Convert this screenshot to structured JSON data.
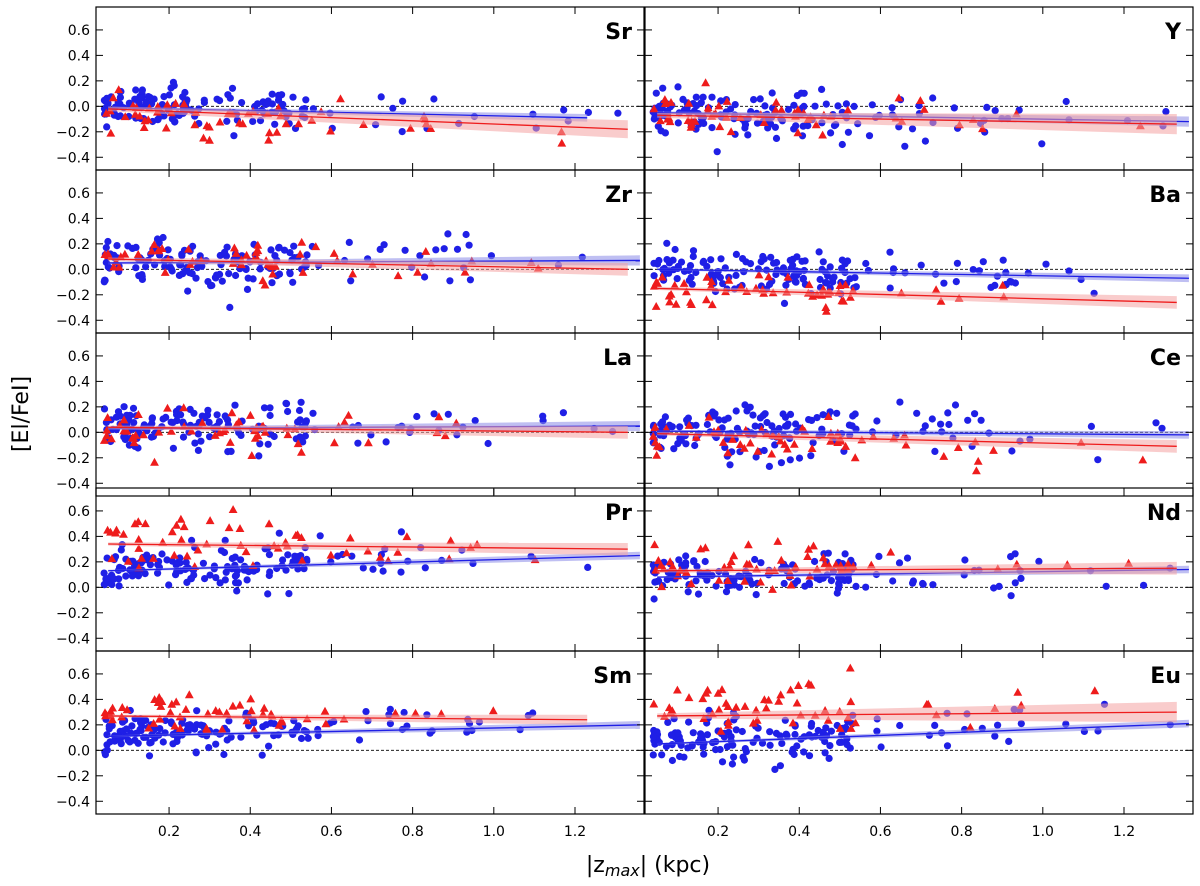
{
  "chart_data": {
    "type": "scatter",
    "xlabel_prefix": "|z",
    "xlabel_sub": "max",
    "xlabel_suffix": "| (kpc)",
    "ylabel": "[El/FeI]",
    "xlim": [
      0.02,
      1.37
    ],
    "ylim": [
      -0.5,
      0.78
    ],
    "xticks": [
      0.2,
      0.4,
      0.6,
      0.8,
      1.0,
      1.2
    ],
    "xtick_labels": [
      "0.2",
      "0.4",
      "0.6",
      "0.8",
      "1.0",
      "1.2"
    ],
    "yticks": [
      -0.4,
      -0.2,
      0.0,
      0.2,
      0.4,
      0.6
    ],
    "ytick_labels": [
      "−0.4",
      "−0.2",
      "0.0",
      "0.2",
      "0.4",
      "0.6"
    ],
    "reference_line_y": 0.0,
    "colors": {
      "blue": "#1f1fe6",
      "red": "#ee1c1c",
      "blue_band": "#8a8ae8",
      "red_band": "#f4a3a3"
    },
    "series_legend": [
      {
        "name": "blue",
        "marker": "circle"
      },
      {
        "name": "red",
        "marker": "triangle"
      }
    ],
    "panels": [
      {
        "element": "Sr",
        "blue": {
          "center": 0.0,
          "spread": 0.1,
          "fit": [
            -0.01,
            -0.09
          ],
          "fit_xmax": 1.23,
          "band": 0.03
        },
        "red": {
          "center": -0.05,
          "spread": 0.1,
          "fit": [
            -0.02,
            -0.18
          ],
          "fit_xmax": 1.33,
          "band": 0.07
        }
      },
      {
        "element": "Y",
        "blue": {
          "center": -0.05,
          "spread": 0.11,
          "fit": [
            -0.05,
            -0.12
          ],
          "fit_xmax": 1.36,
          "band": 0.04
        },
        "red": {
          "center": -0.07,
          "spread": 0.1,
          "fit": [
            -0.07,
            -0.14
          ],
          "fit_xmax": 1.33,
          "band": 0.08
        }
      },
      {
        "element": "Zr",
        "blue": {
          "center": 0.05,
          "spread": 0.11,
          "fit": [
            0.05,
            0.07
          ],
          "fit_xmax": 1.36,
          "band": 0.04
        },
        "red": {
          "center": 0.08,
          "spread": 0.1,
          "fit": [
            0.08,
            0.0
          ],
          "fit_xmax": 1.33,
          "band": 0.05
        }
      },
      {
        "element": "Ba",
        "blue": {
          "center": 0.0,
          "spread": 0.11,
          "fit": [
            0.0,
            -0.07
          ],
          "fit_xmax": 1.36,
          "band": 0.03
        },
        "red": {
          "center": -0.16,
          "spread": 0.09,
          "fit": [
            -0.15,
            -0.26
          ],
          "fit_xmax": 1.33,
          "band": 0.05
        }
      },
      {
        "element": "La",
        "blue": {
          "center": 0.04,
          "spread": 0.11,
          "fit": [
            0.03,
            0.05
          ],
          "fit_xmax": 1.36,
          "band": 0.04
        },
        "red": {
          "center": 0.02,
          "spread": 0.1,
          "fit": [
            0.04,
            0.0
          ],
          "fit_xmax": 1.33,
          "band": 0.05
        }
      },
      {
        "element": "Ce",
        "blue": {
          "center": 0.02,
          "spread": 0.12,
          "fit": [
            0.01,
            -0.02
          ],
          "fit_xmax": 1.36,
          "band": 0.03
        },
        "red": {
          "center": -0.05,
          "spread": 0.1,
          "fit": [
            -0.01,
            -0.11
          ],
          "fit_xmax": 1.33,
          "band": 0.05
        }
      },
      {
        "element": "Pr",
        "blue": {
          "center": 0.13,
          "spread": 0.11,
          "fit": [
            0.13,
            0.25
          ],
          "fit_xmax": 1.36,
          "band": 0.03
        },
        "red": {
          "center": 0.37,
          "spread": 0.12,
          "fit": [
            0.34,
            0.3
          ],
          "fit_xmax": 1.33,
          "band": 0.05
        }
      },
      {
        "element": "Nd",
        "blue": {
          "center": 0.08,
          "spread": 0.1,
          "fit": [
            0.08,
            0.14
          ],
          "fit_xmax": 1.36,
          "band": 0.03
        },
        "red": {
          "center": 0.17,
          "spread": 0.11,
          "fit": [
            0.13,
            0.15
          ],
          "fit_xmax": 1.33,
          "band": 0.05
        }
      },
      {
        "element": "Sm",
        "blue": {
          "center": 0.14,
          "spread": 0.1,
          "fit": [
            0.11,
            0.2
          ],
          "fit_xmax": 1.36,
          "band": 0.03
        },
        "red": {
          "center": 0.29,
          "spread": 0.09,
          "fit": [
            0.27,
            0.24
          ],
          "fit_xmax": 1.23,
          "band": 0.04
        }
      },
      {
        "element": "Eu",
        "blue": {
          "center": 0.08,
          "spread": 0.11,
          "fit": [
            0.05,
            0.21
          ],
          "fit_xmax": 1.36,
          "band": 0.03
        },
        "red": {
          "center": 0.33,
          "spread": 0.14,
          "fit": [
            0.27,
            0.3
          ],
          "fit_xmax": 1.33,
          "band": 0.08
        }
      }
    ]
  }
}
